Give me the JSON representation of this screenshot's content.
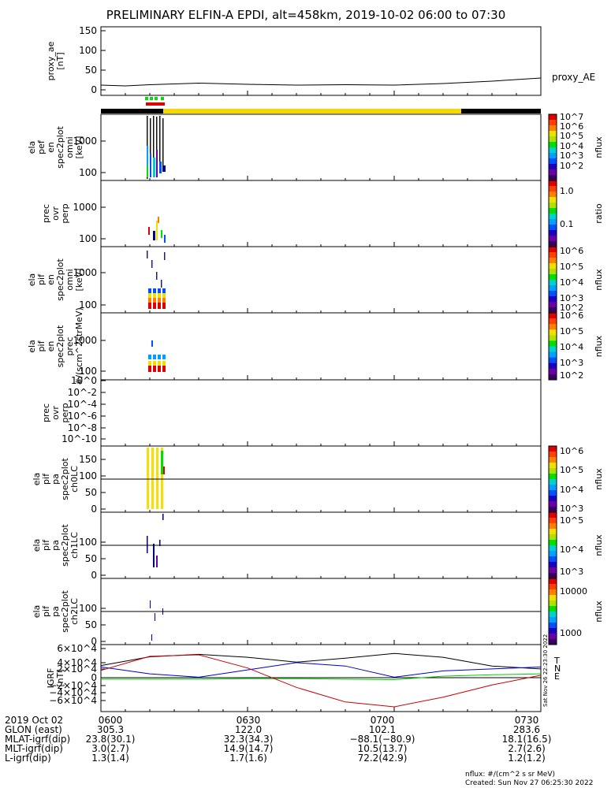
{
  "title": "PRELIMINARY ELFIN-A EPDI, alt=458km, 2019-10-02 06:00 to 07:30",
  "panels": [
    {
      "id": "proxy",
      "ylabel": [
        "proxy_ae",
        "[nT]"
      ],
      "right_label": "proxy_AE",
      "ticks": [
        "0",
        "50",
        "100",
        "150"
      ]
    },
    {
      "id": "pef",
      "ylabel": [
        "ela",
        "pef",
        "en",
        "spec2plot",
        "omni",
        "[keV]"
      ],
      "ticks": [
        "100",
        "1000"
      ],
      "cbar_label": "nflux",
      "cbar_ticks": [
        "10^7",
        "10^6",
        "10^5",
        "10^4",
        "10^3",
        "10^2"
      ]
    },
    {
      "id": "prec1",
      "ylabel": [
        "prec",
        "ovr",
        "perp"
      ],
      "ticks": [
        "100",
        "1000"
      ],
      "cbar_label": "ratio",
      "cbar_ticks": [
        "1.0",
        "0.1"
      ]
    },
    {
      "id": "pif",
      "ylabel": [
        "ela",
        "pif",
        "en",
        "spec2plot",
        "omni",
        "[keV]"
      ],
      "ticks": [
        "100",
        "1000"
      ],
      "cbar_label": "nflux",
      "cbar_ticks": [
        "10^6",
        "10^5",
        "10^4",
        "10^3",
        "10^2"
      ]
    },
    {
      "id": "pifprec",
      "ylabel": [
        "ela",
        "pif",
        "en",
        "spec2plot",
        "prec",
        "#/(scm^2strMeV)"
      ],
      "ticks": [
        "100",
        "1000"
      ],
      "cbar_label": "nflux",
      "cbar_ticks": [
        "10^6",
        "10^5",
        "10^4",
        "10^3",
        "10^2"
      ]
    },
    {
      "id": "prec2",
      "ylabel": [
        "prec",
        "ovr",
        "perp"
      ],
      "ticks": [
        "10^0",
        "10^-2",
        "10^-4",
        "10^-6",
        "10^-8",
        "10^-10"
      ]
    },
    {
      "id": "ch0",
      "ylabel": [
        "ela",
        "pif",
        "pa",
        "spec2plot",
        "ch0LC"
      ],
      "ticks": [
        "0",
        "50",
        "100",
        "150"
      ],
      "cbar_label": "nflux",
      "cbar_ticks": [
        "10^6",
        "10^5",
        "10^4",
        "10^3"
      ]
    },
    {
      "id": "ch1",
      "ylabel": [
        "ela",
        "pif",
        "pa",
        "spec2plot",
        "ch1LC"
      ],
      "ticks": [
        "0",
        "50",
        "100"
      ],
      "cbar_label": "nflux",
      "cbar_ticks": [
        "10^5",
        "10^4",
        "10^3"
      ]
    },
    {
      "id": "ch2",
      "ylabel": [
        "ela",
        "pif",
        "pa",
        "spec2plot",
        "ch2LC"
      ],
      "ticks": [
        "0",
        "50",
        "100"
      ],
      "cbar_label": "nflux",
      "cbar_ticks": [
        "10000",
        "1000"
      ]
    },
    {
      "id": "igrf",
      "ylabel": [
        "IGRF",
        "[nT]"
      ],
      "ticks": [
        "6×10^4",
        "4×10^4",
        "2×10^4",
        "0",
        "−2×10^4",
        "−4×10^4",
        "−6×10^4"
      ],
      "legend": [
        "T",
        "N",
        "E"
      ],
      "stamp": "Sat Nov 26 22:23:30 2022"
    }
  ],
  "footer": {
    "rows": [
      {
        "label": "2019 Oct 02",
        "values": [
          "0600",
          "0630",
          "0700",
          "0730"
        ]
      },
      {
        "label": "GLON (east)",
        "values": [
          "305.3",
          "122.0",
          "102.1",
          "283.6"
        ]
      },
      {
        "label": "MLAT-igrf(dip)",
        "values": [
          "23.8(30.1)",
          "32.3(34.3)",
          "−88.1(−80.9)",
          "18.1(16.5)"
        ]
      },
      {
        "label": "MLT-igrf(dip)",
        "values": [
          "3.0(2.7)",
          "14.9(14.7)",
          "10.5(13.7)",
          "2.7(2.6)"
        ]
      },
      {
        "label": "L-igrf(dip)",
        "values": [
          "1.3(1.4)",
          "1.7(1.6)",
          "72.2(42.9)",
          "1.2(1.2)"
        ]
      }
    ],
    "units_note": "nflux: #/(cm^2 s sr MeV)",
    "created": "Created: Sun Nov 27 06:25:30 2022"
  },
  "chart_data": {
    "type": "line",
    "x_range": [
      "06:00",
      "07:30"
    ],
    "proxy_ae": {
      "x": [
        "06:00",
        "06:05",
        "06:10",
        "06:20",
        "06:30",
        "06:40",
        "06:50",
        "07:00",
        "07:10",
        "07:20",
        "07:30"
      ],
      "y": [
        12,
        10,
        13,
        17,
        14,
        12,
        13,
        12,
        16,
        22,
        30
      ]
    },
    "igrf": {
      "x": [
        "06:00",
        "06:10",
        "06:20",
        "06:30",
        "06:40",
        "06:50",
        "07:00",
        "07:10",
        "07:20",
        "07:30"
      ],
      "series": [
        {
          "name": "T",
          "color": "#000000",
          "values": [
            25000,
            43000,
            48000,
            42000,
            32000,
            40000,
            50000,
            42000,
            24000,
            18000
          ]
        },
        {
          "name": "N",
          "color": "#0000cc",
          "values": [
            22000,
            8000,
            1000,
            16000,
            31000,
            24000,
            1000,
            14000,
            18000,
            22000
          ]
        },
        {
          "name": "E",
          "color": "#00cc00",
          "values": [
            -3000,
            -3000,
            -3000,
            -2000,
            -2000,
            -3000,
            -4000,
            3000,
            6000,
            8000
          ]
        }
      ],
      "extra_series": [
        {
          "color": "#cc0000",
          "values": [
            15000,
            44000,
            47000,
            20000,
            -20000,
            -50000,
            -60000,
            -40000,
            -15000,
            5000
          ]
        }
      ]
    }
  }
}
